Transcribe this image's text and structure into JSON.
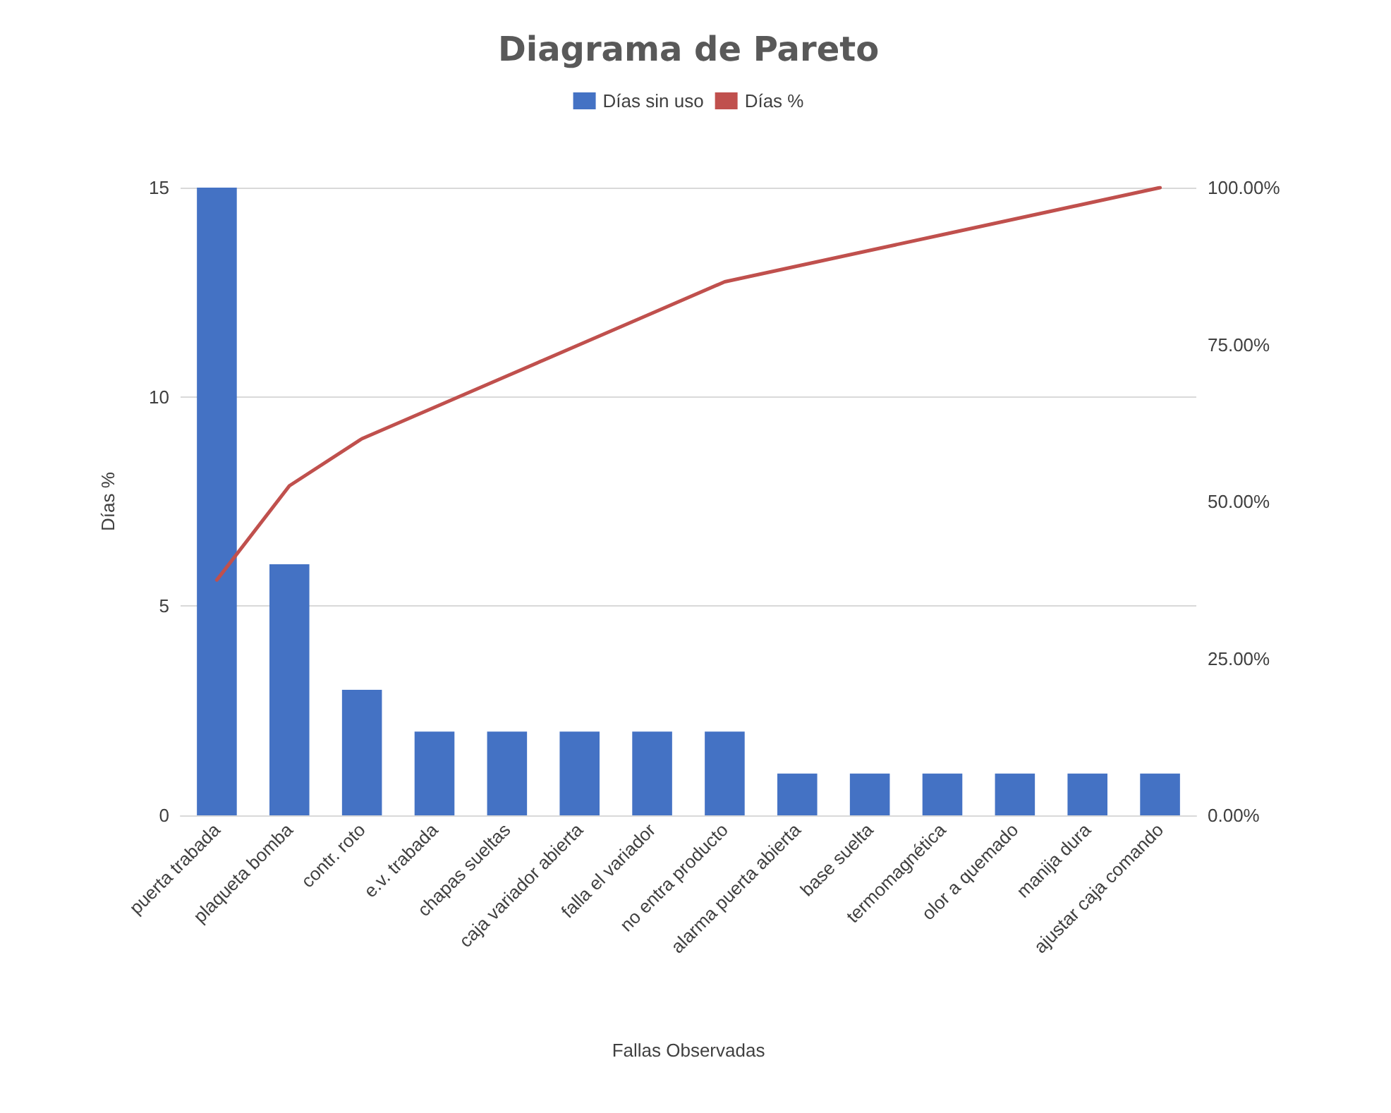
{
  "chart_data": {
    "type": "bar",
    "title": "Diagrama de Pareto",
    "xlabel": "Fallas Observadas",
    "ylabel": "Días %",
    "categories": [
      "puerta trabada",
      "plaqueta bomba",
      "contr. roto",
      "e.v. trabada",
      "chapas sueltas",
      "caja variador abierta",
      "falla el variador",
      "no entra producto",
      "alarma puerta abierta",
      "base suelta",
      "termomagnética",
      "olor a quemado",
      "manija dura",
      "ajustar caja comando"
    ],
    "series": [
      {
        "name": "Días sin uso",
        "color": "#4472c4",
        "values": [
          15,
          6,
          3,
          2,
          2,
          2,
          2,
          2,
          1,
          1,
          1,
          1,
          1,
          1
        ]
      },
      {
        "name": "Días %",
        "type": "line",
        "axis": "y2",
        "color": "#c0504d",
        "values": [
          37.5,
          52.5,
          60,
          65,
          70,
          75,
          80,
          85,
          87.5,
          90,
          92.5,
          95,
          97.5,
          100
        ]
      }
    ],
    "ylim": [
      0,
      15
    ],
    "yticks": [
      0,
      5,
      10,
      15
    ],
    "y2lim": [
      0,
      100
    ],
    "y2ticks": [
      {
        "value": 0,
        "label": "0.00%"
      },
      {
        "value": 25,
        "label": "25.00%"
      },
      {
        "value": 50,
        "label": "50.00%"
      },
      {
        "value": 75,
        "label": "75.00%"
      },
      {
        "value": 100,
        "label": "100.00%"
      }
    ],
    "grid": "y",
    "legend": "top",
    "marker": "none"
  }
}
